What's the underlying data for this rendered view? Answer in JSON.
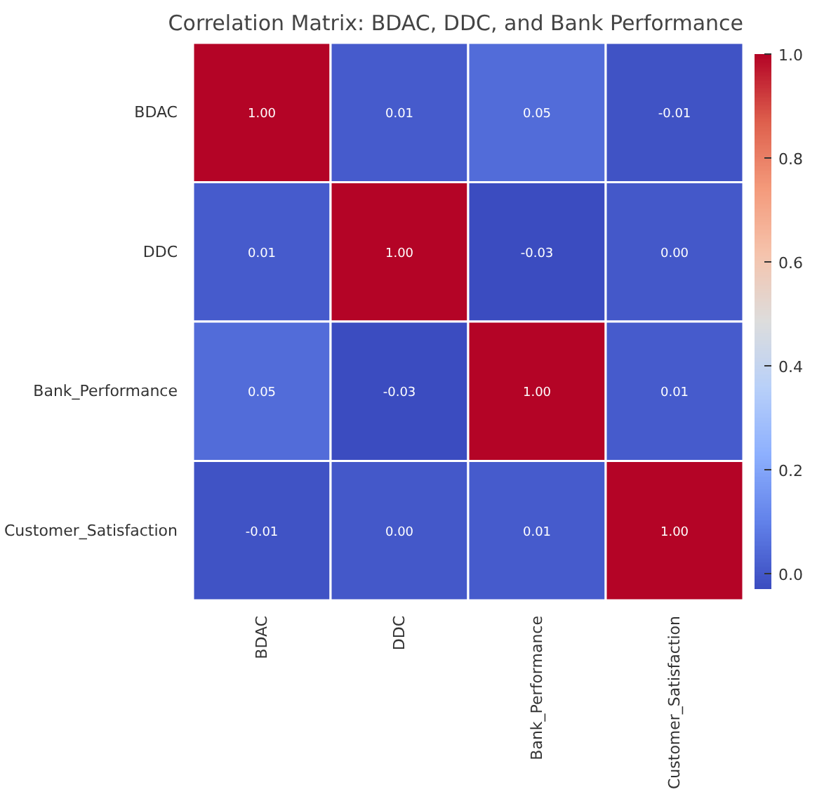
{
  "chart_data": {
    "type": "heatmap",
    "title": "Correlation Matrix: BDAC, DDC, and Bank Performance",
    "categories": [
      "BDAC",
      "DDC",
      "Bank_Performance",
      "Customer_Satisfaction"
    ],
    "y_categories": [
      "BDAC",
      "DDC",
      "Bank_Performance",
      "Customer_Satisfaction"
    ],
    "cells": [
      [
        1.0,
        0.01,
        0.05,
        -0.01
      ],
      [
        0.01,
        1.0,
        -0.03,
        0.0
      ],
      [
        0.05,
        -0.03,
        1.0,
        0.01
      ],
      [
        -0.01,
        0.0,
        0.01,
        1.0
      ]
    ],
    "cell_labels": [
      [
        "1.00",
        "0.01",
        "0.05",
        "-0.01"
      ],
      [
        "0.01",
        "1.00",
        "-0.03",
        "0.00"
      ],
      [
        "0.05",
        "-0.03",
        "1.00",
        "0.01"
      ],
      [
        "-0.01",
        "0.00",
        "0.01",
        "1.00"
      ]
    ],
    "clim": [
      -0.03,
      1.0
    ],
    "cticks": [
      {
        "value": 0.0,
        "label": "0.0"
      },
      {
        "value": 0.2,
        "label": "0.2"
      },
      {
        "value": 0.4,
        "label": "0.4"
      },
      {
        "value": 0.6,
        "label": "0.6"
      },
      {
        "value": 0.8,
        "label": "0.8"
      },
      {
        "value": 1.0,
        "label": "1.0"
      }
    ]
  }
}
